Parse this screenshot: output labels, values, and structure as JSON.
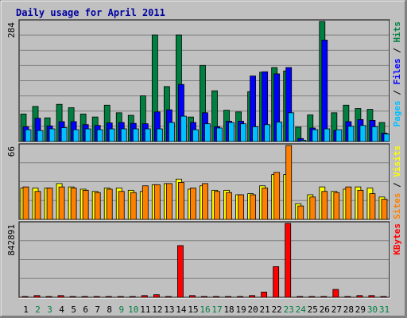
{
  "chart_data": [
    {
      "type": "bar",
      "title": "Daily usage for April 2011",
      "categories": [
        "1",
        "2",
        "3",
        "4",
        "5",
        "6",
        "7",
        "8",
        "9",
        "10",
        "11",
        "12",
        "13",
        "14",
        "15",
        "16",
        "17",
        "18",
        "19",
        "20",
        "21",
        "22",
        "23",
        "24",
        "25",
        "26",
        "27",
        "28",
        "29",
        "30",
        "31"
      ],
      "weekend_days": [
        "2",
        "3",
        "9",
        "10",
        "16",
        "17",
        "23",
        "24",
        "30",
        "31"
      ],
      "y_label": "284",
      "ylim": [
        0,
        284
      ],
      "legend": [
        "Pages",
        "Files",
        "Hits"
      ],
      "legend_separator": " / ",
      "series": [
        {
          "name": "Hits",
          "color": "#008040",
          "values": [
            65,
            83,
            56,
            88,
            80,
            65,
            58,
            86,
            68,
            62,
            108,
            252,
            130,
            252,
            58,
            180,
            120,
            74,
            70,
            118,
            164,
            175,
            167,
            34,
            63,
            284,
            68,
            86,
            78,
            76,
            45
          ]
        },
        {
          "name": "Files",
          "color": "#0000ff",
          "values": [
            35,
            55,
            37,
            47,
            47,
            40,
            38,
            44,
            45,
            43,
            42,
            70,
            75,
            135,
            45,
            68,
            35,
            48,
            48,
            155,
            165,
            160,
            175,
            7,
            32,
            240,
            26,
            47,
            52,
            50,
            20
          ]
        },
        {
          "name": "Pages",
          "color": "#00c0ff",
          "values": [
            28,
            26,
            30,
            33,
            28,
            30,
            28,
            30,
            30,
            30,
            30,
            30,
            45,
            60,
            28,
            42,
            32,
            45,
            42,
            35,
            40,
            46,
            68,
            3,
            28,
            30,
            28,
            36,
            38,
            35,
            18
          ]
        }
      ]
    },
    {
      "type": "bar",
      "y_label": "66",
      "ylim": [
        0,
        66
      ],
      "legend": [
        "Sites",
        "Visits"
      ],
      "legend_separator": " / ",
      "series": [
        {
          "name": "Visits",
          "color": "#ffff00",
          "values": [
            28,
            28,
            28,
            32,
            29,
            27,
            25,
            28,
            28,
            26,
            25,
            31,
            32,
            36,
            27,
            30,
            26,
            26,
            22,
            23,
            30,
            40,
            40,
            14,
            22,
            29,
            25,
            27,
            29,
            28,
            20
          ]
        },
        {
          "name": "Sites",
          "color": "#ff8000",
          "values": [
            29,
            25,
            28,
            29,
            28,
            26,
            24,
            27,
            25,
            24,
            30,
            31,
            32,
            33,
            28,
            32,
            25,
            24,
            22,
            22,
            28,
            42,
            66,
            12,
            20,
            25,
            24,
            29,
            26,
            23,
            18
          ]
        }
      ]
    },
    {
      "type": "bar",
      "y_label": "842891",
      "ylim": [
        0,
        842891
      ],
      "legend": [
        "KBytes"
      ],
      "legend_separator": "",
      "series": [
        {
          "name": "KBytes",
          "color": "#ff0000",
          "values": [
            10000,
            20000,
            10000,
            20000,
            10000,
            10000,
            10000,
            10000,
            10000,
            10000,
            20000,
            30000,
            10000,
            590000,
            20000,
            10000,
            10000,
            10000,
            10000,
            20000,
            60000,
            350000,
            842891,
            10000,
            10000,
            10000,
            90000,
            10000,
            20000,
            20000,
            10000
          ]
        }
      ]
    }
  ]
}
